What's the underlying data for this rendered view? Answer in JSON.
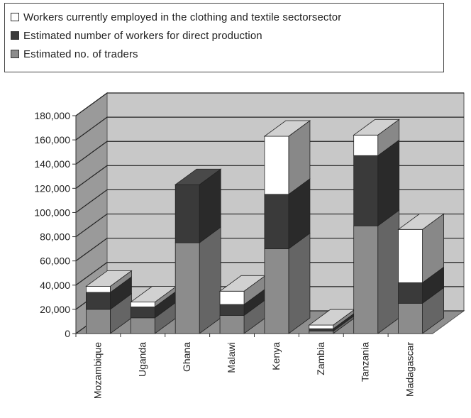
{
  "legend": [
    {
      "label": "Workers currently employed in the clothing and textile sectorsector",
      "color": "#ffffff"
    },
    {
      "label": "Estimated number of workers for direct production",
      "color": "#3a3a3a"
    },
    {
      "label": "Estimated no. of traders",
      "color": "#8c8c8c"
    }
  ],
  "chart_data": {
    "type": "bar",
    "stacked": true,
    "three_d": true,
    "categories": [
      "Mozambique",
      "Uganda",
      "Ghana",
      "Malawi",
      "Kenya",
      "Zambia",
      "Tanzania",
      "Madagascar"
    ],
    "series": [
      {
        "name": "Estimated no. of traders",
        "color": "#8c8c8c",
        "values": [
          20000,
          13000,
          75000,
          15000,
          70000,
          2000,
          89000,
          25000
        ]
      },
      {
        "name": "Estimated number of workers for direct production",
        "color": "#3a3a3a",
        "values": [
          14000,
          9000,
          48000,
          9000,
          45000,
          2000,
          58000,
          17000
        ]
      },
      {
        "name": "Workers currently employed in the clothing and textile sectorsector",
        "color": "#ffffff",
        "values": [
          5000,
          4000,
          0,
          11000,
          48000,
          3000,
          17000,
          44000
        ]
      }
    ],
    "ylim": [
      0,
      180000
    ],
    "yticks": [
      "0",
      "20,000",
      "40,000",
      "60,000",
      "80,000",
      "100,000",
      "120,000",
      "140,000",
      "160,000",
      "180,000"
    ],
    "grid": true,
    "legend_position": "top"
  }
}
